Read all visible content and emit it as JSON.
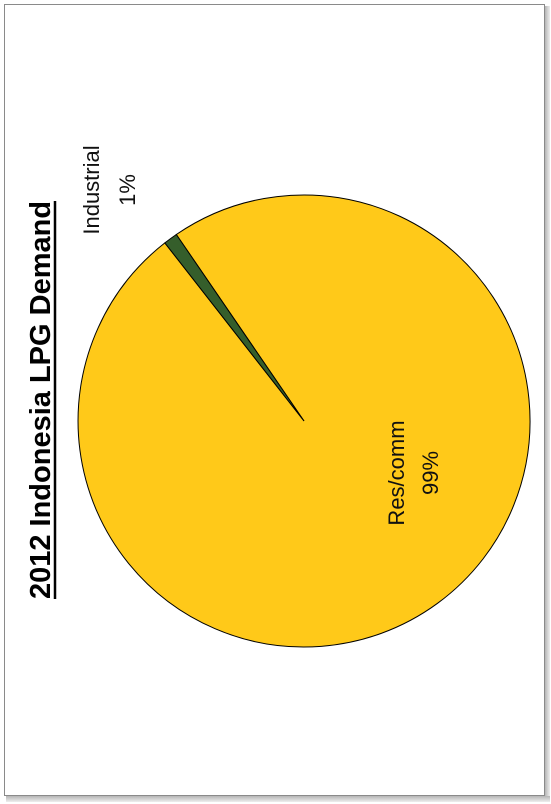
{
  "chart_data": {
    "type": "pie",
    "title": "2012 Indonesia LPG Demand",
    "slices": [
      {
        "label": "Res/comm",
        "percent_label": "99%",
        "value": 99,
        "color": "#FFC919"
      },
      {
        "label": "Industrial",
        "percent_label": "1%",
        "value": 1,
        "color": "#355E2B"
      }
    ],
    "orientation": "rotated 90° counter-clockwise"
  }
}
